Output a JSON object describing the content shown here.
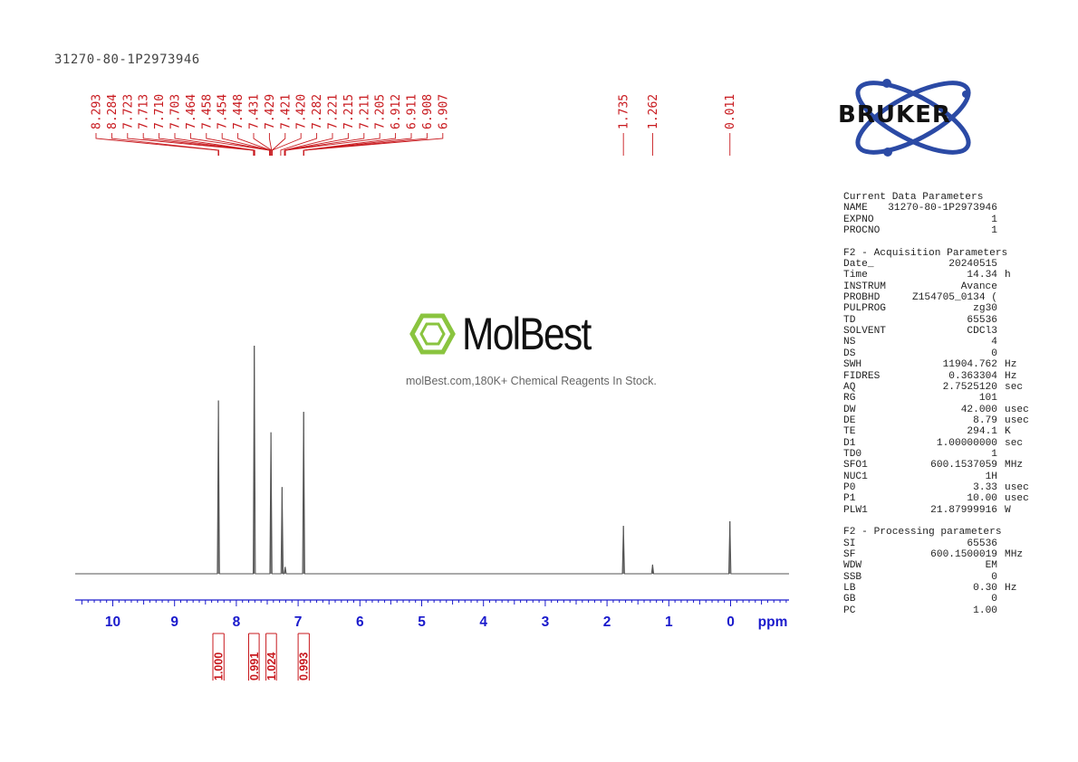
{
  "sample_id": "31270-80-1P2973946",
  "brand": "BRUKER",
  "watermark": {
    "logo_text": "MolBest",
    "tagline": "molBest.com,180K+ Chemical Reagents In Stock.",
    "color": "#8ac43f"
  },
  "parameters": [
    {
      "section": "Current Data Parameters",
      "rows": [
        {
          "k": "NAME",
          "v": "31270-80-1P2973946",
          "u": ""
        },
        {
          "k": "EXPNO",
          "v": "1",
          "u": ""
        },
        {
          "k": "PROCNO",
          "v": "1",
          "u": ""
        }
      ]
    },
    {
      "section": "F2 - Acquisition Parameters",
      "rows": [
        {
          "k": "Date_",
          "v": "20240515",
          "u": ""
        },
        {
          "k": "Time",
          "v": "14.34",
          "u": "h"
        },
        {
          "k": "INSTRUM",
          "v": "Avance",
          "u": ""
        },
        {
          "k": "PROBHD",
          "v": "Z154705_0134 (",
          "u": ""
        },
        {
          "k": "PULPROG",
          "v": "zg30",
          "u": ""
        },
        {
          "k": "TD",
          "v": "65536",
          "u": ""
        },
        {
          "k": "SOLVENT",
          "v": "CDCl3",
          "u": ""
        },
        {
          "k": "NS",
          "v": "4",
          "u": ""
        },
        {
          "k": "DS",
          "v": "0",
          "u": ""
        },
        {
          "k": "SWH",
          "v": "11904.762",
          "u": "Hz"
        },
        {
          "k": "FIDRES",
          "v": "0.363304",
          "u": "Hz"
        },
        {
          "k": "AQ",
          "v": "2.7525120",
          "u": "sec"
        },
        {
          "k": "RG",
          "v": "101",
          "u": ""
        },
        {
          "k": "DW",
          "v": "42.000",
          "u": "usec"
        },
        {
          "k": "DE",
          "v": "8.79",
          "u": "usec"
        },
        {
          "k": "TE",
          "v": "294.1",
          "u": "K"
        },
        {
          "k": "D1",
          "v": "1.00000000",
          "u": "sec"
        },
        {
          "k": "TD0",
          "v": "1",
          "u": ""
        },
        {
          "k": "SFO1",
          "v": "600.1537059",
          "u": "MHz"
        },
        {
          "k": "NUC1",
          "v": "1H",
          "u": ""
        },
        {
          "k": "P0",
          "v": "3.33",
          "u": "usec"
        },
        {
          "k": "P1",
          "v": "10.00",
          "u": "usec"
        },
        {
          "k": "PLW1",
          "v": "21.87999916",
          "u": "W"
        }
      ]
    },
    {
      "section": "F2 - Processing parameters",
      "rows": [
        {
          "k": "SI",
          "v": "65536",
          "u": ""
        },
        {
          "k": "SF",
          "v": "600.1500019",
          "u": "MHz"
        },
        {
          "k": "WDW",
          "v": "EM",
          "u": ""
        },
        {
          "k": "SSB",
          "v": "0",
          "u": ""
        },
        {
          "k": "LB",
          "v": "0.30",
          "u": "Hz"
        },
        {
          "k": "GB",
          "v": "0",
          "u": ""
        },
        {
          "k": "PC",
          "v": "1.00",
          "u": ""
        }
      ]
    }
  ],
  "chart_data": {
    "type": "line",
    "xlabel": "ppm",
    "xlim": [
      10.6,
      -0.95
    ],
    "x_reversed": true,
    "x_ticks": [
      "10",
      "9",
      "8",
      "7",
      "6",
      "5",
      "4",
      "3",
      "2",
      "1",
      "0"
    ],
    "peak_labels_group1": [
      "8.293",
      "8.284",
      "7.723",
      "7.713",
      "7.710",
      "7.703",
      "7.464",
      "7.458",
      "7.454",
      "7.448",
      "7.431",
      "7.429",
      "7.421",
      "7.420",
      "7.282",
      "7.221",
      "7.215",
      "7.211",
      "7.205",
      "6.912",
      "6.911",
      "6.908",
      "6.907"
    ],
    "peak_labels_group2": [
      "1.735",
      "1.262",
      "0.011"
    ],
    "peaks": [
      {
        "ppm": 8.29,
        "height": 0.76
      },
      {
        "ppm": 7.71,
        "height": 1.0
      },
      {
        "ppm": 7.44,
        "height": 0.62
      },
      {
        "ppm": 7.26,
        "height": 0.38
      },
      {
        "ppm": 7.21,
        "height": 0.03
      },
      {
        "ppm": 6.91,
        "height": 0.71
      },
      {
        "ppm": 1.735,
        "height": 0.21
      },
      {
        "ppm": 1.262,
        "height": 0.04
      },
      {
        "ppm": 0.011,
        "height": 0.23
      }
    ],
    "integrals": [
      {
        "value": "1.000",
        "range": [
          8.38,
          8.2
        ]
      },
      {
        "value": "0.991",
        "range": [
          7.8,
          7.63
        ]
      },
      {
        "value": "1.024",
        "range": [
          7.52,
          7.35
        ]
      },
      {
        "value": "0.993",
        "range": [
          7.0,
          6.82
        ]
      }
    ],
    "colors": {
      "spectrum": "#555555",
      "axis": "#1a1acc",
      "labels": "#c8191e"
    }
  }
}
